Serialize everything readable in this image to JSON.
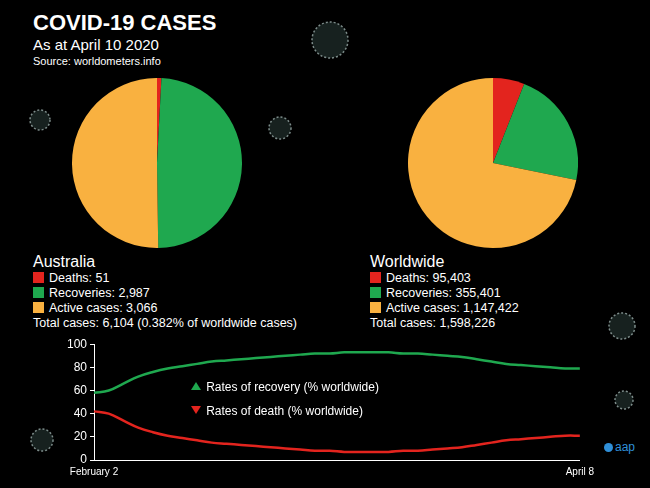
{
  "header": {
    "title": "COVID-19 CASES",
    "subtitle": "As at April 10 2020",
    "source": "Source: worldometers.info"
  },
  "logo": "aap",
  "chart_data": [
    {
      "type": "pie",
      "title": "Australia",
      "categories": [
        "Deaths: 51",
        "Recoveries: 2,987",
        "Active cases: 3,066"
      ],
      "values": [
        51,
        2987,
        3066
      ],
      "colors": [
        "#e3241e",
        "#1fa84f",
        "#f9b140"
      ],
      "annotation": "Total cases: 6,104 (0.382% of worldwide cases)"
    },
    {
      "type": "pie",
      "title": "Worldwide",
      "categories": [
        "Deaths: 95,403",
        "Recoveries: 355,401",
        "Active cases: 1,147,422"
      ],
      "values": [
        95403,
        355401,
        1147422
      ],
      "colors": [
        "#e3241e",
        "#1fa84f",
        "#f9b140"
      ],
      "annotation": "Total cases: 1,598,226"
    },
    {
      "type": "line",
      "categories": [
        "February 2",
        null,
        null,
        null,
        null,
        null,
        null,
        null,
        null,
        null,
        null,
        null,
        null,
        null,
        null,
        null,
        null,
        null,
        null,
        null,
        null,
        null,
        null,
        null,
        null,
        null,
        null,
        null,
        null,
        null,
        null,
        null,
        null,
        "April 8"
      ],
      "series": [
        {
          "name": "Rates of recovery (% worldwide)",
          "color": "#1fa84f",
          "values": [
            58,
            60,
            66,
            72,
            76,
            79,
            81,
            83,
            85,
            86,
            87,
            88,
            89,
            90,
            91,
            92,
            92,
            93,
            93,
            93,
            93,
            92,
            92,
            91,
            90,
            89,
            87,
            85,
            83,
            82,
            81,
            80,
            79,
            79
          ]
        },
        {
          "name": "Rates of death (% worldwide)",
          "color": "#e3241e",
          "values": [
            42,
            40,
            34,
            28,
            24,
            21,
            19,
            17,
            15,
            14,
            13,
            12,
            11,
            10,
            9,
            8,
            8,
            7,
            7,
            7,
            7,
            8,
            8,
            9,
            10,
            11,
            13,
            15,
            17,
            18,
            19,
            20,
            21,
            21
          ]
        }
      ],
      "ylim": [
        0,
        100
      ],
      "yticks": [
        0,
        20,
        40,
        60,
        80,
        100
      ],
      "grid": false
    }
  ]
}
